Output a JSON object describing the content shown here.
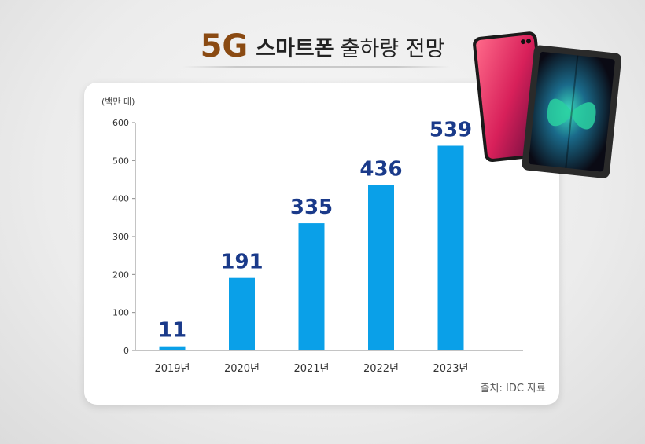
{
  "title": {
    "highlight": "5G",
    "main": "스마트폰",
    "rest": "출하량 전망"
  },
  "source": "출처: IDC 자료",
  "colors": {
    "bar": "#0aa0e8",
    "value_label": "#1a3a8a",
    "title_accent": "#8a4a12"
  },
  "chart_data": {
    "type": "bar",
    "title": "5G 스마트폰 출하량 전망",
    "unit_label": "(백만 대)",
    "categories": [
      "2019년",
      "2020년",
      "2021년",
      "2022년",
      "2023년"
    ],
    "values": [
      11,
      191,
      335,
      436,
      539
    ],
    "value_labels": [
      "11",
      "191",
      "335",
      "436",
      "539"
    ],
    "yticks": [
      "0",
      "100",
      "200",
      "300",
      "400",
      "500",
      "600"
    ],
    "ylim": [
      0,
      600
    ],
    "grid": false
  }
}
